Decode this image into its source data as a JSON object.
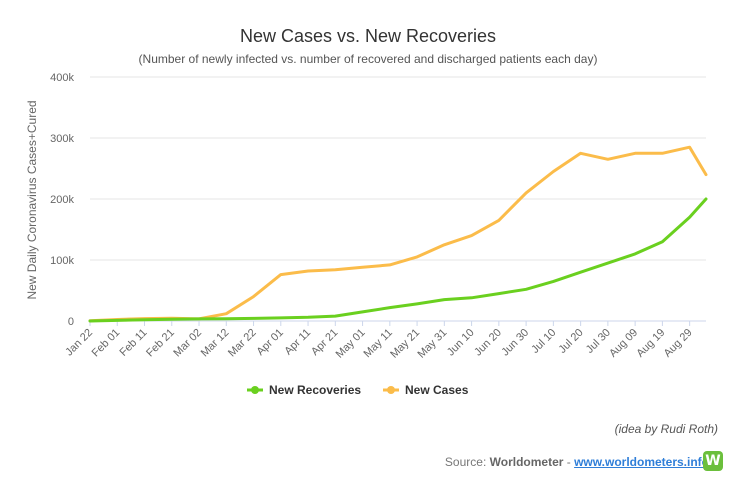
{
  "chart_data": {
    "type": "line",
    "title": "New Cases vs. New Recoveries",
    "subtitle": "(Number of newly infected vs. number of recovered and discharged patients each day)",
    "ylabel": "New Daily Coronavirus Cases+Cured",
    "xlabel": "",
    "ylim": [
      0,
      400000
    ],
    "y_ticks": [
      "0",
      "100k",
      "200k",
      "300k",
      "400k"
    ],
    "x_ticks": [
      "Jan 22",
      "Feb 01",
      "Feb 11",
      "Feb 21",
      "Mar 02",
      "Mar 12",
      "Mar 22",
      "Apr 01",
      "Apr 11",
      "Apr 21",
      "May 01",
      "May 11",
      "May 21",
      "May 31",
      "Jun 10",
      "Jun 20",
      "Jun 30",
      "Jul 10",
      "Jul 20",
      "Jul 30",
      "Aug 09",
      "Aug 19",
      "Aug 29"
    ],
    "grid": true,
    "legend_position": "bottom",
    "x_day_offsets": [
      0,
      10,
      20,
      30,
      40,
      50,
      60,
      70,
      80,
      90,
      100,
      110,
      120,
      130,
      140,
      150,
      160,
      170,
      180,
      190,
      200,
      210,
      220,
      226
    ],
    "series": [
      {
        "name": "New Recoveries",
        "color": "#6ad01f",
        "values": [
          0,
          1000,
          2000,
          3000,
          3500,
          3800,
          4200,
          5000,
          6000,
          8000,
          15000,
          22000,
          28000,
          35000,
          38000,
          45000,
          52000,
          65000,
          80000,
          95000,
          110000,
          130000,
          170000,
          200000
        ]
      },
      {
        "name": "New Cases",
        "color": "#fbbc4a",
        "values": [
          500,
          2500,
          4000,
          4500,
          3500,
          12000,
          40000,
          76000,
          82000,
          84000,
          88000,
          92000,
          105000,
          125000,
          140000,
          165000,
          210000,
          245000,
          275000,
          265000,
          275000,
          275000,
          285000,
          240000
        ]
      }
    ]
  },
  "credit_note": "(idea by Rudi Roth)",
  "source": {
    "prefix": "Source: ",
    "brand": "Worldometer",
    "separator": " - ",
    "link": "www.worldometers.info",
    "logo": "W"
  }
}
